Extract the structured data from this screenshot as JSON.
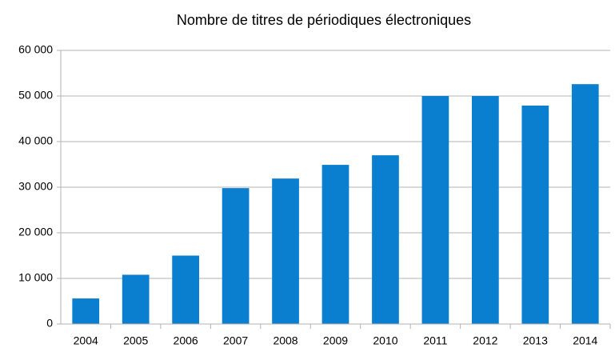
{
  "chart_data": {
    "type": "bar",
    "title": "Nombre de titres de périodiques électroniques",
    "categories": [
      "2004",
      "2005",
      "2006",
      "2007",
      "2008",
      "2009",
      "2010",
      "2011",
      "2012",
      "2013",
      "2014"
    ],
    "values": [
      5600,
      10800,
      15000,
      29800,
      31900,
      34900,
      37000,
      50000,
      50000,
      47900,
      52600
    ],
    "color": "#0a7fd0",
    "ylim": [
      0,
      60000
    ],
    "yticks": [
      0,
      {
        "value": 10000,
        "label": "10 000"
      },
      {
        "value": 20000,
        "label": "20 000"
      },
      {
        "value": 30000,
        "label": "30 000"
      },
      {
        "value": 40000,
        "label": "40 000"
      },
      {
        "value": 50000,
        "label": "50 000"
      },
      {
        "value": 60000,
        "label": "60 000"
      }
    ],
    "grid": true
  }
}
